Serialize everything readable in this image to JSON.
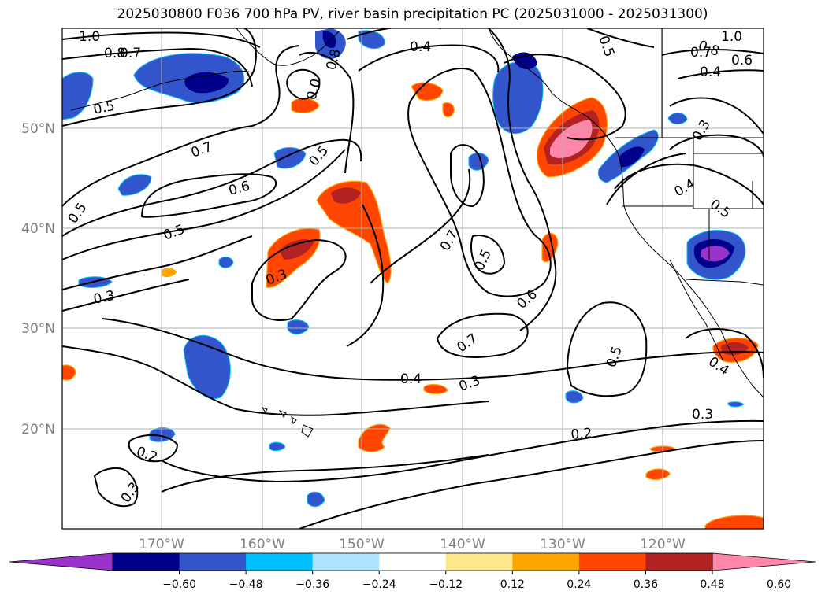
{
  "title": "2025030800 F036 700 hPa PV, river basin precipitation PC (2025031000 - 2025031300)",
  "map": {
    "lon_ticks": [
      "170°W",
      "160°W",
      "150°W",
      "140°W",
      "130°W",
      "120°W"
    ],
    "lat_ticks": [
      "50°N",
      "40°N",
      "30°N",
      "20°N"
    ],
    "tick_label_color": "#808080",
    "gridlines": true
  },
  "contour_labels": [
    "1.0",
    "0.8",
    "0.7",
    "0.5",
    "0.4",
    "0.8",
    "0.7",
    "0.6",
    "1.0",
    "0.4",
    "0.0",
    "0.8",
    "0.5",
    "0.7",
    "0.5",
    "0.6",
    "0.5",
    "0.5",
    "0.3",
    "0.3",
    "0.7",
    "0.5",
    "0.6",
    "0.7",
    "0.4",
    "0.3",
    "0.5",
    "0.4",
    "0.3",
    "0.2",
    "0.2",
    "0.3",
    "0.4",
    "0.5",
    "0.3"
  ],
  "colorbar": {
    "colors": [
      "#9933cc",
      "#00008b",
      "#3355cc",
      "#00bfff",
      "#aee4ff",
      "#ffffff",
      "#ffe88c",
      "#ffa500",
      "#ff4500",
      "#b22222",
      "#ff88aa"
    ],
    "tick_labels": [
      "−0.60",
      "−0.48",
      "−0.36",
      "−0.24",
      "−0.12",
      "0.12",
      "0.24",
      "0.36",
      "0.48",
      "0.60"
    ],
    "extend": "both"
  }
}
